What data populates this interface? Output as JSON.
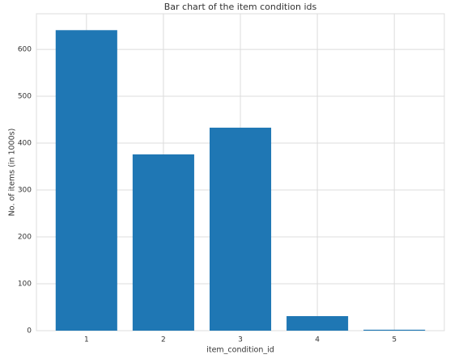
{
  "chart_data": {
    "type": "bar",
    "title": "Bar chart of the item condition ids",
    "x_label": "item_condition_id",
    "y_label": "No. of items (in 1000s)",
    "x": [
      1,
      2,
      3,
      4,
      5
    ],
    "values": [
      641,
      376,
      433,
      31,
      2
    ],
    "color": "#1f77b4",
    "xlim": [
      0.35,
      5.65
    ],
    "xticks": [
      1,
      2,
      3,
      4,
      5
    ],
    "ylim": [
      0,
      676
    ],
    "yticks": [
      0,
      100,
      200,
      300,
      400,
      500,
      600
    ],
    "grid": true
  }
}
